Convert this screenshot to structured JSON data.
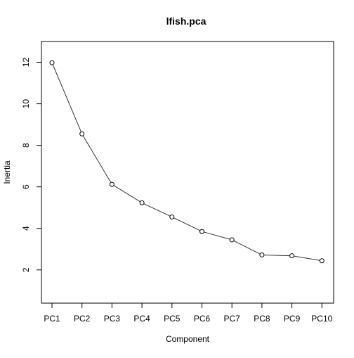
{
  "chart_data": {
    "type": "line",
    "title": "lfish.pca",
    "xlabel": "Component",
    "ylabel": "Inertia",
    "categories": [
      "PC1",
      "PC2",
      "PC3",
      "PC4",
      "PC5",
      "PC6",
      "PC7",
      "PC8",
      "PC9",
      "PC10"
    ],
    "series": [
      {
        "values": [
          11.98,
          8.55,
          6.12,
          5.23,
          4.55,
          3.85,
          3.45,
          2.72,
          2.68,
          2.44
        ]
      }
    ],
    "ylim": [
      0.4,
      13.0
    ],
    "yticks": [
      2,
      4,
      6,
      8,
      10,
      12
    ],
    "grid": false,
    "markers": "open-circle",
    "colors": {
      "line": "#333333",
      "marker": "#000000",
      "axis": "#000000"
    }
  }
}
